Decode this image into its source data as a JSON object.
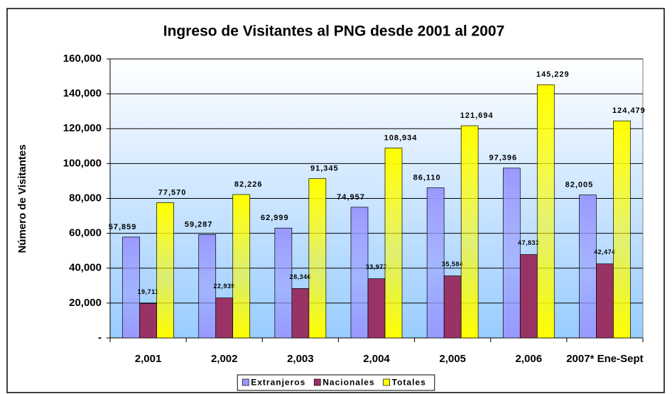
{
  "chart_data": {
    "type": "bar",
    "title": "Ingreso de Visitantes al PNG desde 2001 al 2007",
    "y_label": "Número de Visitantes",
    "categories": [
      "2,001",
      "2,002",
      "2,003",
      "2,004",
      "2,005",
      "2,006",
      "2007* Ene-Sept"
    ],
    "series": [
      {
        "name": "Extranjeros",
        "color": "#9999ff",
        "values": [
          57859,
          59287,
          62999,
          74957,
          86110,
          97396,
          82005
        ],
        "value_labels": [
          "57,859",
          "59,287",
          "62,999",
          "74,957",
          "86,110",
          "97,396",
          "82,005"
        ]
      },
      {
        "name": "Nacionales",
        "color": "#993366",
        "values": [
          19711,
          22939,
          28346,
          33977,
          35584,
          47833,
          42474
        ],
        "value_labels": [
          "19,711",
          "22,939",
          "28,346",
          "33,977",
          "35,584",
          "47,833",
          "42,474"
        ]
      },
      {
        "name": "Totales",
        "color": "#ffff00",
        "values": [
          77570,
          82226,
          91345,
          108934,
          121694,
          145229,
          124479
        ],
        "value_labels": [
          "77,570",
          "82,226",
          "91,345",
          "108,934",
          "121,694",
          "145,229",
          "124,479"
        ]
      }
    ],
    "ylim": [
      0,
      160000
    ],
    "yticks": [
      {
        "value": 0,
        "label": "-"
      },
      {
        "value": 20000,
        "label": "20,000"
      },
      {
        "value": 40000,
        "label": "40,000"
      },
      {
        "value": 60000,
        "label": "60,000"
      },
      {
        "value": 80000,
        "label": "80,000"
      },
      {
        "value": 100000,
        "label": "100,000"
      },
      {
        "value": 120000,
        "label": "120,000"
      },
      {
        "value": 140000,
        "label": "140,000"
      },
      {
        "value": 160000,
        "label": "160,000"
      }
    ],
    "grid": true,
    "legend": "bottom"
  }
}
